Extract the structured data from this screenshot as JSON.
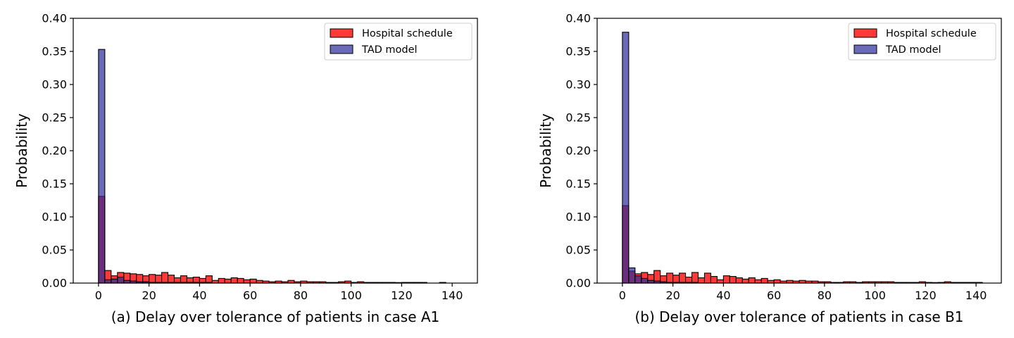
{
  "colors": {
    "hospital": "#ff0000",
    "tad": "#2b2b9b",
    "edge": "#000000"
  },
  "chart_data": [
    {
      "type": "bar",
      "xlabel": "(a) Delay over tolerance of patients in case A1",
      "ylabel": "Probability",
      "xlim": [
        -10,
        150
      ],
      "ylim": [
        0,
        0.4
      ],
      "xticks": [
        0,
        20,
        40,
        60,
        80,
        100,
        120,
        140
      ],
      "yticks": [
        0.0,
        0.05,
        0.1,
        0.15,
        0.2,
        0.25,
        0.3,
        0.35,
        0.4
      ],
      "grid": false,
      "legend_position": "top-right",
      "bin_start": 0,
      "bin_width": 2.5,
      "series": [
        {
          "name": "Hospital schedule",
          "values": [
            0.131,
            0.019,
            0.011,
            0.016,
            0.015,
            0.014,
            0.013,
            0.011,
            0.013,
            0.012,
            0.016,
            0.012,
            0.008,
            0.011,
            0.008,
            0.009,
            0.007,
            0.011,
            0.004,
            0.007,
            0.006,
            0.008,
            0.007,
            0.005,
            0.006,
            0.004,
            0.003,
            0.002,
            0.003,
            0.002,
            0.004,
            0.002,
            0.003,
            0.002,
            0.002,
            0.002,
            0.001,
            0.001,
            0.002,
            0.003,
            0.001,
            0.002,
            0.001,
            0.001,
            0.001,
            0.001,
            0.001,
            0.0008,
            0.001,
            0.001,
            0.001,
            0.001,
            0,
            0,
            0.001,
            0,
            0,
            0,
            0
          ]
        },
        {
          "name": "TAD model",
          "values": [
            0.353,
            0.005,
            0.006,
            0.009,
            0.004,
            0.003,
            0.002,
            0.002,
            0.001,
            0.001,
            0.001,
            0.001,
            0.001,
            0.001,
            0.001,
            0.001,
            0.001,
            0.001,
            0,
            0,
            0,
            0,
            0,
            0,
            0,
            0,
            0,
            0,
            0,
            0,
            0,
            0,
            0,
            0,
            0,
            0,
            0,
            0,
            0,
            0,
            0,
            0,
            0,
            0,
            0,
            0,
            0,
            0,
            0,
            0,
            0,
            0,
            0,
            0,
            0,
            0,
            0,
            0,
            0
          ]
        }
      ]
    },
    {
      "type": "bar",
      "xlabel": "(b) Delay over tolerance of patients in case B1",
      "ylabel": "Probability",
      "xlim": [
        -10,
        150
      ],
      "ylim": [
        0,
        0.4
      ],
      "xticks": [
        0,
        20,
        40,
        60,
        80,
        100,
        120,
        140
      ],
      "yticks": [
        0.0,
        0.05,
        0.1,
        0.15,
        0.2,
        0.25,
        0.3,
        0.35,
        0.4
      ],
      "grid": false,
      "legend_position": "top-right",
      "bin_start": 0,
      "bin_width": 2.5,
      "series": [
        {
          "name": "Hospital schedule",
          "values": [
            0.117,
            0.018,
            0.014,
            0.016,
            0.013,
            0.019,
            0.011,
            0.015,
            0.012,
            0.015,
            0.009,
            0.016,
            0.008,
            0.015,
            0.01,
            0.005,
            0.011,
            0.01,
            0.008,
            0.006,
            0.008,
            0.005,
            0.007,
            0.004,
            0.005,
            0.003,
            0.004,
            0.003,
            0.004,
            0.003,
            0.003,
            0.002,
            0.002,
            0.001,
            0.001,
            0.002,
            0.002,
            0.001,
            0.002,
            0.002,
            0.002,
            0.002,
            0.002,
            0.001,
            0.001,
            0.001,
            0.001,
            0.002,
            0.001,
            0.0008,
            0.001,
            0.002,
            0.001,
            0.001,
            0.001,
            0.001,
            0.001,
            0,
            0
          ]
        },
        {
          "name": "TAD model",
          "values": [
            0.379,
            0.023,
            0.011,
            0.007,
            0.004,
            0.003,
            0.002,
            0.001,
            0.001,
            0.001,
            0.001,
            0.001,
            0,
            0,
            0,
            0,
            0,
            0,
            0,
            0,
            0,
            0,
            0,
            0,
            0,
            0,
            0,
            0,
            0,
            0,
            0,
            0,
            0,
            0,
            0,
            0,
            0,
            0,
            0,
            0,
            0,
            0,
            0,
            0,
            0,
            0,
            0,
            0,
            0,
            0,
            0,
            0,
            0,
            0,
            0,
            0,
            0,
            0,
            0
          ]
        }
      ]
    }
  ]
}
